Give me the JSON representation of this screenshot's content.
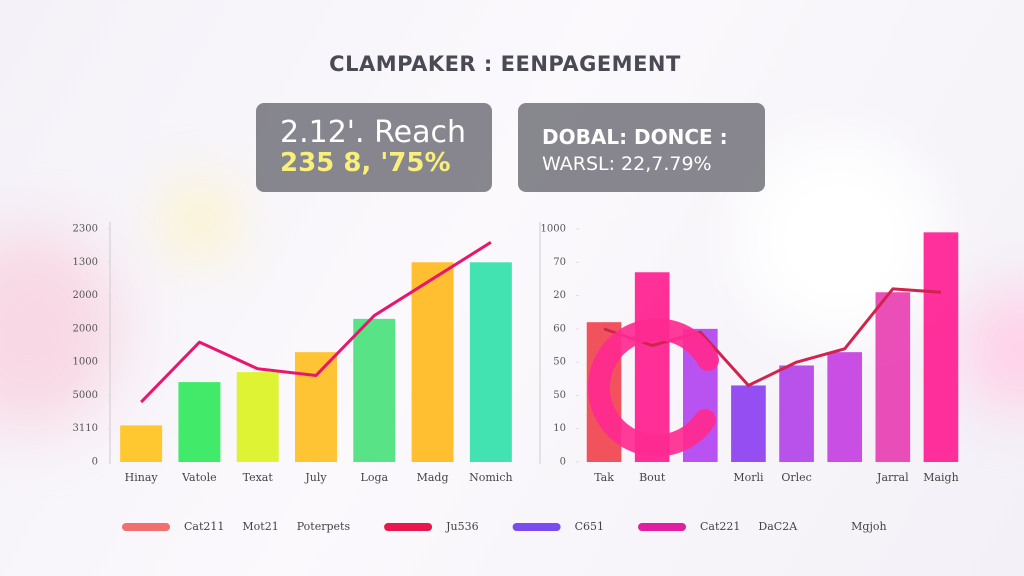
{
  "title": "CLAMPAKER : EENPAGEMENT",
  "cards": [
    {
      "line1": "2.12'. Reach",
      "line2": "235 8, '75%"
    },
    {
      "line1": "DOBAL: DONCE :",
      "line2": "WARSL: 22,7.79%"
    }
  ],
  "chart_data": [
    {
      "type": "bar",
      "categories": [
        "Hinay",
        "Vatole",
        "Texat",
        "July",
        "Loga",
        "Madg",
        "Nomich"
      ],
      "values": [
        1.1,
        2.4,
        2.7,
        3.3,
        4.3,
        6.0,
        6.0
      ],
      "colors": [
        "#ffc21a",
        "#2ee85a",
        "#d9f21e",
        "#ffbe1e",
        "#46e07a",
        "#ffb81a",
        "#2ee0a8"
      ],
      "line": {
        "color": "#e8176e",
        "values": [
          1.8,
          3.6,
          2.8,
          2.6,
          4.4,
          5.5,
          6.6
        ]
      },
      "ylim": [
        0,
        7
      ],
      "yticks": [
        {
          "value": 0,
          "label": "0"
        },
        {
          "value": 1,
          "label": "3110"
        },
        {
          "value": 2,
          "label": "5000"
        },
        {
          "value": 3,
          "label": "1000"
        },
        {
          "value": 4,
          "label": "2000"
        },
        {
          "value": 5,
          "label": "2000"
        },
        {
          "value": 6,
          "label": "1300"
        },
        {
          "value": 7,
          "label": "2300"
        }
      ]
    },
    {
      "type": "bar",
      "categories": [
        "Tak",
        "Bout",
        null,
        "Morli",
        "Orlec",
        null,
        "Jarral",
        "Maigh"
      ],
      "values": [
        4.2,
        5.7,
        4.0,
        2.3,
        2.9,
        3.3,
        5.1,
        6.9
      ],
      "colors": [
        "#f0404a",
        "#ff1a8c",
        "#b040f0",
        "#8a3cf0",
        "#b040e8",
        "#c43ce0",
        "#e83cb0",
        "#ff1a90"
      ],
      "line": {
        "color": "#d0244e",
        "values": [
          4.0,
          3.5,
          3.9,
          2.3,
          3.0,
          3.4,
          5.2,
          5.1
        ]
      },
      "ylim": [
        0,
        7
      ],
      "yticks": [
        {
          "value": 0,
          "label": "0"
        },
        {
          "value": 1,
          "label": "10"
        },
        {
          "value": 2,
          "label": "50"
        },
        {
          "value": 3,
          "label": "50"
        },
        {
          "value": 4,
          "label": "60"
        },
        {
          "value": 5,
          "label": "20"
        },
        {
          "value": 6,
          "label": "70"
        },
        {
          "value": 7,
          "label": "1000"
        }
      ]
    }
  ],
  "legend": [
    {
      "color": "#f07070",
      "texts": [
        "Cat211",
        "Mot21",
        "Poterpets"
      ]
    },
    {
      "color": "#e8174e",
      "texts": [
        "Ju536"
      ]
    },
    {
      "color": "#7a4cf0",
      "texts": [
        "C651"
      ]
    },
    {
      "color": "#e020a0",
      "texts": [
        "Cat221",
        "DaC2A"
      ]
    },
    {
      "color": null,
      "texts": [
        "Mgjoh"
      ]
    }
  ]
}
